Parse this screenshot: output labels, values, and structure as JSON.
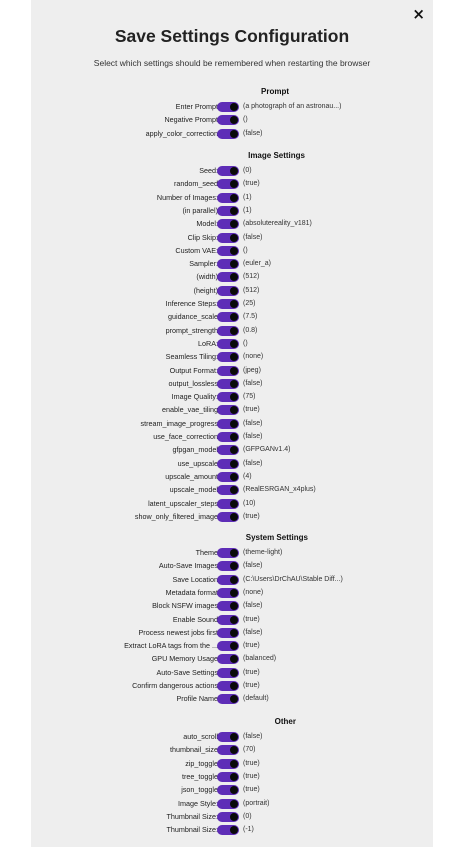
{
  "dialog": {
    "close": "×",
    "title": "Save Settings Configuration",
    "subtitle": "Select which settings should be remembered when restarting the browser"
  },
  "colors": {
    "toggle_track": "#5e2db7",
    "toggle_knob": "#0a0a0a",
    "dialog_bg": "#eeeeee"
  },
  "sections": [
    {
      "title": "Prompt",
      "rows": [
        {
          "label": "Enter Prompt",
          "value": "(a photograph of an astronau...)"
        },
        {
          "label": "Negative Prompt",
          "value": "()"
        },
        {
          "label": "apply_color_correction",
          "value": "(false)"
        }
      ]
    },
    {
      "title": "Image Settings",
      "rows": [
        {
          "label": "Seed:",
          "value": "(0)"
        },
        {
          "label": "random_seed",
          "value": "(true)"
        },
        {
          "label": "Number of Images:",
          "value": "(1)"
        },
        {
          "label": "(in parallel)",
          "value": "(1)"
        },
        {
          "label": "Model:",
          "value": "(absolutereality_v181)"
        },
        {
          "label": "Clip Skip:",
          "value": "(false)"
        },
        {
          "label": "Custom VAE:",
          "value": "()"
        },
        {
          "label": "Sampler:",
          "value": "(euler_a)"
        },
        {
          "label": "(width)",
          "value": "(512)"
        },
        {
          "label": "(height)",
          "value": "(512)"
        },
        {
          "label": "Inference Steps:",
          "value": "(25)"
        },
        {
          "label": "guidance_scale",
          "value": "(7.5)"
        },
        {
          "label": "prompt_strength",
          "value": "(0.8)"
        },
        {
          "label": "LoRA:",
          "value": "()"
        },
        {
          "label": "Seamless Tiling:",
          "value": "(none)"
        },
        {
          "label": "Output Format:",
          "value": "(jpeg)"
        },
        {
          "label": "output_lossless",
          "value": "(false)"
        },
        {
          "label": "Image Quality:",
          "value": "(75)"
        },
        {
          "label": "enable_vae_tiling",
          "value": "(true)"
        },
        {
          "label": "stream_image_progress",
          "value": "(false)"
        },
        {
          "label": "use_face_correction",
          "value": "(false)"
        },
        {
          "label": "gfpgan_model",
          "value": "(GFPGANv1.4)"
        },
        {
          "label": "use_upscale",
          "value": "(false)"
        },
        {
          "label": "upscale_amount",
          "value": "(4)"
        },
        {
          "label": "upscale_model",
          "value": "(RealESRGAN_x4plus)"
        },
        {
          "label": "latent_upscaler_steps",
          "value": "(10)"
        },
        {
          "label": "show_only_filtered_image",
          "value": "(true)"
        }
      ]
    },
    {
      "title": "System Settings",
      "rows": [
        {
          "label": "Theme",
          "value": "(theme-light)"
        },
        {
          "label": "Auto-Save Images",
          "value": "(false)"
        },
        {
          "label": "Save Location",
          "value": "(C:\\Users\\DrChAU\\Stable Diff...)"
        },
        {
          "label": "Metadata format",
          "value": "(none)"
        },
        {
          "label": "Block NSFW images",
          "value": "(false)"
        },
        {
          "label": "Enable Sound",
          "value": "(true)"
        },
        {
          "label": "Process newest jobs first",
          "value": "(false)"
        },
        {
          "label": "Extract LoRA tags from the ...",
          "value": "(true)"
        },
        {
          "label": "GPU Memory Usage",
          "value": "(balanced)"
        },
        {
          "label": "Auto-Save Settings",
          "value": "(true)"
        },
        {
          "label": "Confirm dangerous actions",
          "value": "(true)"
        },
        {
          "label": "Profile Name",
          "value": "(default)"
        }
      ]
    },
    {
      "title": "Other",
      "rows": [
        {
          "label": "auto_scroll",
          "value": "(false)"
        },
        {
          "label": "thumbnail_size",
          "value": "(70)"
        },
        {
          "label": "zip_toggle",
          "value": "(true)"
        },
        {
          "label": "tree_toggle",
          "value": "(true)"
        },
        {
          "label": "json_toggle",
          "value": "(true)"
        },
        {
          "label": "Image Style:",
          "value": "(portrait)"
        },
        {
          "label": "Thumbnail Size:",
          "value": "(0)"
        },
        {
          "label": "Thumbnail Size:",
          "value": "(-1)"
        }
      ]
    }
  ]
}
